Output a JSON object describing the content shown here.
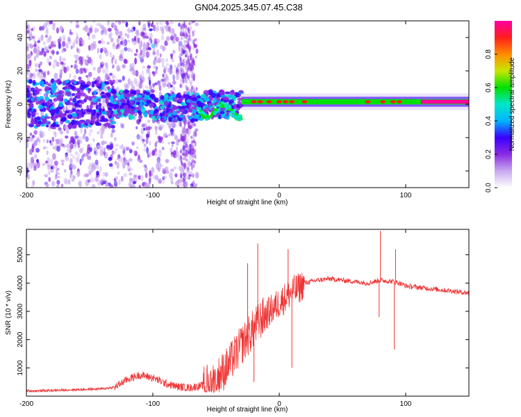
{
  "title": "GN04.2025.345.07.45.C38",
  "chart_data": [
    {
      "type": "heatmap",
      "name": "spectrogram",
      "xlabel": "Height of straight line (km)",
      "ylabel": "Frequency (Hz)",
      "xlim": [
        -200,
        150
      ],
      "ylim": [
        -50,
        50
      ],
      "xticks": [
        -200,
        -100,
        0,
        100
      ],
      "xtick_labels": [
        "-200",
        "-100",
        "0",
        "100"
      ],
      "yticks": [
        -40,
        -20,
        0,
        20,
        40
      ],
      "ytick_labels": [
        "-40",
        "-20",
        "0",
        "20",
        "40"
      ],
      "colorbar": {
        "label": "Normalized spectral amplitude",
        "range": [
          0.0,
          1.0
        ],
        "ticks": [
          0.0,
          0.2,
          0.4,
          0.6,
          0.8
        ],
        "tick_labels": [
          "0.0",
          "0.2",
          "0.4",
          "0.6",
          "0.8"
        ],
        "colors": [
          "#ffffff",
          "#c8a8f0",
          "#8a2be2",
          "#3a00ff",
          "#00b4ff",
          "#00e6c8",
          "#00e000",
          "#c8e600",
          "#ff8c00",
          "#ff1e1e",
          "#ff00a0"
        ]
      },
      "features": {
        "line_freq_hz": 1.5,
        "line_start_km": -30,
        "scatter_region_km": [
          -200,
          -65
        ],
        "blob_band_km": [
          -130,
          -30
        ],
        "peak_amplitude": 0.95
      }
    },
    {
      "type": "line",
      "name": "snr",
      "xlabel": "Height of straight line (km)",
      "ylabel": "SNR (10 * v/v)",
      "xlim": [
        -200,
        150
      ],
      "ylim": [
        0,
        5900
      ],
      "xticks": [
        -200,
        -100,
        0,
        100
      ],
      "xtick_labels": [
        "-200",
        "-100",
        "0",
        "100"
      ],
      "yticks": [
        1000,
        2000,
        3000,
        4000,
        5000
      ],
      "ytick_labels": [
        "1000",
        "2000",
        "3000",
        "4000",
        "5000"
      ],
      "color": "#ee3333",
      "series": [
        {
          "name": "SNR",
          "x": [
            -200,
            -180,
            -160,
            -140,
            -130,
            -120,
            -110,
            -100,
            -90,
            -80,
            -70,
            -60,
            -50,
            -40,
            -30,
            -20,
            -15,
            -10,
            -5,
            0,
            5,
            10,
            15,
            20,
            25,
            30,
            40,
            50,
            60,
            70,
            80,
            90,
            95,
            100,
            110,
            120,
            130,
            140,
            150
          ],
          "y": [
            180,
            200,
            230,
            260,
            320,
            600,
            750,
            650,
            450,
            330,
            300,
            380,
            600,
            1100,
            1800,
            2400,
            2700,
            2900,
            3100,
            3300,
            3500,
            3700,
            3800,
            4000,
            4050,
            4100,
            4150,
            4100,
            4050,
            4000,
            4100,
            4050,
            4000,
            3900,
            3850,
            3800,
            3750,
            3700,
            3650
          ]
        }
      ],
      "spikes": [
        {
          "x": -17,
          "y": 5400
        },
        {
          "x": -20,
          "y": 500
        },
        {
          "x": -25,
          "y": 4700
        },
        {
          "x": 7,
          "y": 5200
        },
        {
          "x": 10,
          "y": 1000
        },
        {
          "x": 80,
          "y": 5850
        },
        {
          "x": 79,
          "y": 2800
        },
        {
          "x": 91,
          "y": 1650
        },
        {
          "x": 92,
          "y": 5200
        }
      ]
    }
  ]
}
